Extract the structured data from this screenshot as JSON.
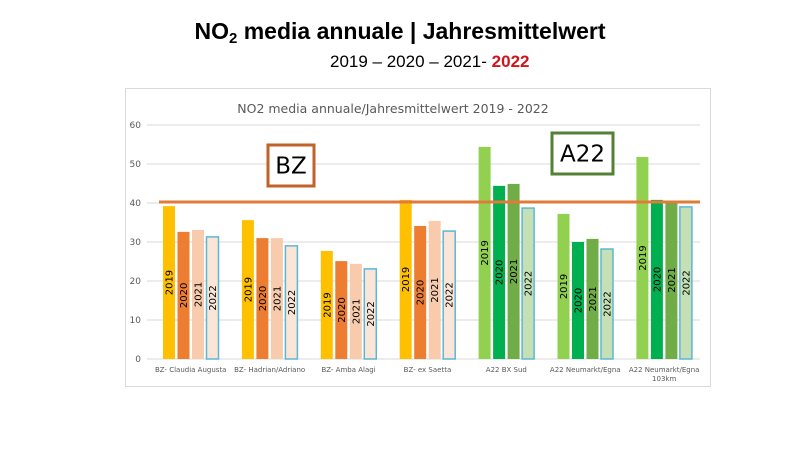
{
  "header": {
    "title_prefix": "NO",
    "title_sub": "2",
    "title_suffix": " media annuale | Jahresmittelwert",
    "years_plain": "2019 – 2020 – 2021- ",
    "years_highlight": "2022"
  },
  "colors": {
    "bz_2019": "#FFC000",
    "bz_2020": "#ED7D31",
    "bz_2021": "#F8CBAD",
    "bz_2022": "#FBE5D6",
    "a22_2019": "#92D050",
    "a22_2020": "#00B050",
    "a22_2021": "#70AD47",
    "a22_2022": "#C5E0B4",
    "bar_2022_border": "#5BB7D5",
    "limit_line": "#E07B39",
    "bz_box": "#C0622A",
    "a22_box": "#548235",
    "highlight_red": "#D0141A"
  },
  "chart_data": {
    "type": "bar",
    "title": "NO2 media annuale/Jahresmittelwert 2019 - 2022",
    "xlabel": "",
    "ylabel": "",
    "ylim": [
      0,
      60
    ],
    "yticks": [
      0,
      10,
      20,
      30,
      40,
      50,
      60
    ],
    "grid": true,
    "categories": [
      {
        "label": "BZ- Claudia Augusta",
        "lines": [
          "BZ- Claudia Augusta"
        ],
        "group": "BZ"
      },
      {
        "label": "BZ- Hadrian/Adriano",
        "lines": [
          "BZ- Hadrian/Adriano"
        ],
        "group": "BZ"
      },
      {
        "label": "BZ- Amba Alagi",
        "lines": [
          "BZ- Amba Alagi"
        ],
        "group": "BZ"
      },
      {
        "label": "BZ- ex Saetta",
        "lines": [
          "BZ- ex Saetta"
        ],
        "group": "BZ"
      },
      {
        "label": "A22 BX Sud",
        "lines": [
          "A22 BX Sud"
        ],
        "group": "A22"
      },
      {
        "label": "A22 Neumarkt/Egna",
        "lines": [
          "A22 Neumarkt/Egna"
        ],
        "group": "A22"
      },
      {
        "label": "A22 Neumarkt/Egna 103km",
        "lines": [
          "A22 Neumarkt/Egna",
          "103km"
        ],
        "group": "A22"
      }
    ],
    "series": [
      {
        "name": "2019",
        "values": [
          39.2,
          35.6,
          27.7,
          40.8,
          54.4,
          37.2,
          51.8
        ]
      },
      {
        "name": "2020",
        "values": [
          32.6,
          31.0,
          25.1,
          34.1,
          44.4,
          30.0,
          40.8
        ]
      },
      {
        "name": "2021",
        "values": [
          33.1,
          31.0,
          24.4,
          35.4,
          44.9,
          30.8,
          40.5
        ]
      },
      {
        "name": "2022",
        "values": [
          31.3,
          29.0,
          23.1,
          32.8,
          38.7,
          28.2,
          39.0
        ]
      }
    ],
    "limit_value": 40,
    "annotations": [
      {
        "text": "BZ",
        "group": "BZ"
      },
      {
        "text": "A22",
        "group": "A22"
      }
    ]
  }
}
